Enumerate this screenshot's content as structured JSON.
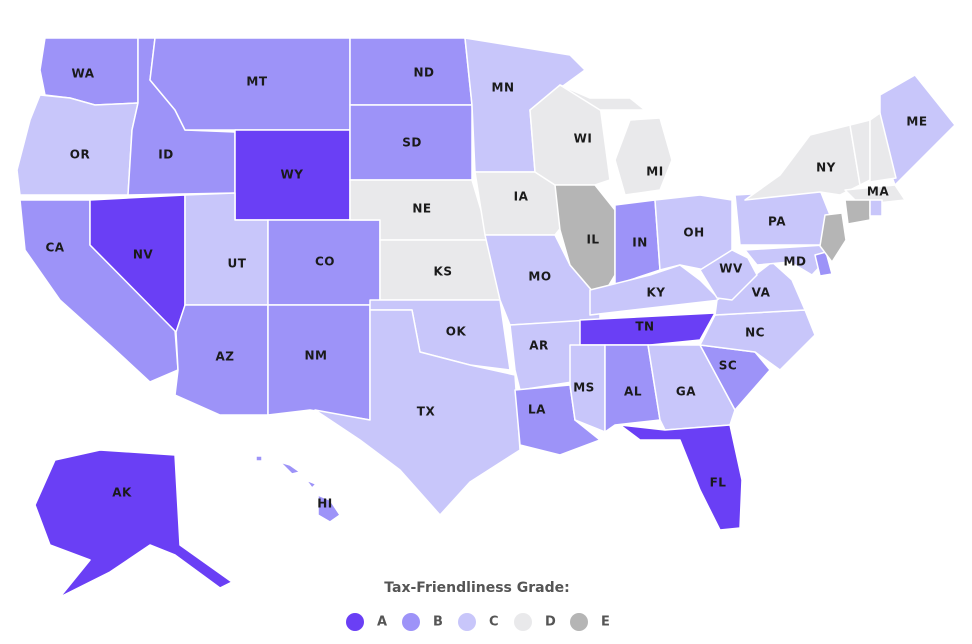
{
  "legend": {
    "title": "Tax-Friendliness Grade:",
    "grades": [
      {
        "label": "A",
        "color": "#6a3ff5"
      },
      {
        "label": "B",
        "color": "#9d93f8"
      },
      {
        "label": "C",
        "color": "#c8c6fa"
      },
      {
        "label": "D",
        "color": "#e9e9eb"
      },
      {
        "label": "E",
        "color": "#b5b5b5"
      }
    ]
  },
  "states": [
    {
      "label": "WA",
      "grade": "B"
    },
    {
      "label": "OR",
      "grade": "C"
    },
    {
      "label": "CA",
      "grade": "B"
    },
    {
      "label": "NV",
      "grade": "A"
    },
    {
      "label": "ID",
      "grade": "B"
    },
    {
      "label": "MT",
      "grade": "B"
    },
    {
      "label": "WY",
      "grade": "A"
    },
    {
      "label": "UT",
      "grade": "C"
    },
    {
      "label": "CO",
      "grade": "B"
    },
    {
      "label": "AZ",
      "grade": "B"
    },
    {
      "label": "NM",
      "grade": "B"
    },
    {
      "label": "ND",
      "grade": "B"
    },
    {
      "label": "SD",
      "grade": "B"
    },
    {
      "label": "NE",
      "grade": "D"
    },
    {
      "label": "KS",
      "grade": "D"
    },
    {
      "label": "OK",
      "grade": "C"
    },
    {
      "label": "TX",
      "grade": "C"
    },
    {
      "label": "MN",
      "grade": "C"
    },
    {
      "label": "IA",
      "grade": "D"
    },
    {
      "label": "MO",
      "grade": "C"
    },
    {
      "label": "AR",
      "grade": "C"
    },
    {
      "label": "LA",
      "grade": "B"
    },
    {
      "label": "WI",
      "grade": "D"
    },
    {
      "label": "IL",
      "grade": "E"
    },
    {
      "label": "MI",
      "grade": "D"
    },
    {
      "label": "IN",
      "grade": "B"
    },
    {
      "label": "OH",
      "grade": "C"
    },
    {
      "label": "KY",
      "grade": "C"
    },
    {
      "label": "TN",
      "grade": "A"
    },
    {
      "label": "MS",
      "grade": "C"
    },
    {
      "label": "AL",
      "grade": "B"
    },
    {
      "label": "GA",
      "grade": "C"
    },
    {
      "label": "FL",
      "grade": "A"
    },
    {
      "label": "SC",
      "grade": "B"
    },
    {
      "label": "NC",
      "grade": "C"
    },
    {
      "label": "VA",
      "grade": "C"
    },
    {
      "label": "WV",
      "grade": "C"
    },
    {
      "label": "MD",
      "grade": "C"
    },
    {
      "label": "PA",
      "grade": "C"
    },
    {
      "label": "NY",
      "grade": "D"
    },
    {
      "label": "ME",
      "grade": "C"
    },
    {
      "label": "MA",
      "grade": "D"
    },
    {
      "label": "AK",
      "grade": "A"
    },
    {
      "label": "HI",
      "grade": "B"
    },
    {
      "label": null,
      "grade": "B"
    },
    {
      "label": null,
      "grade": "E"
    },
    {
      "label": null,
      "grade": "D"
    },
    {
      "label": null,
      "grade": "D"
    },
    {
      "label": null,
      "grade": "E"
    },
    {
      "label": null,
      "grade": "C"
    }
  ]
}
